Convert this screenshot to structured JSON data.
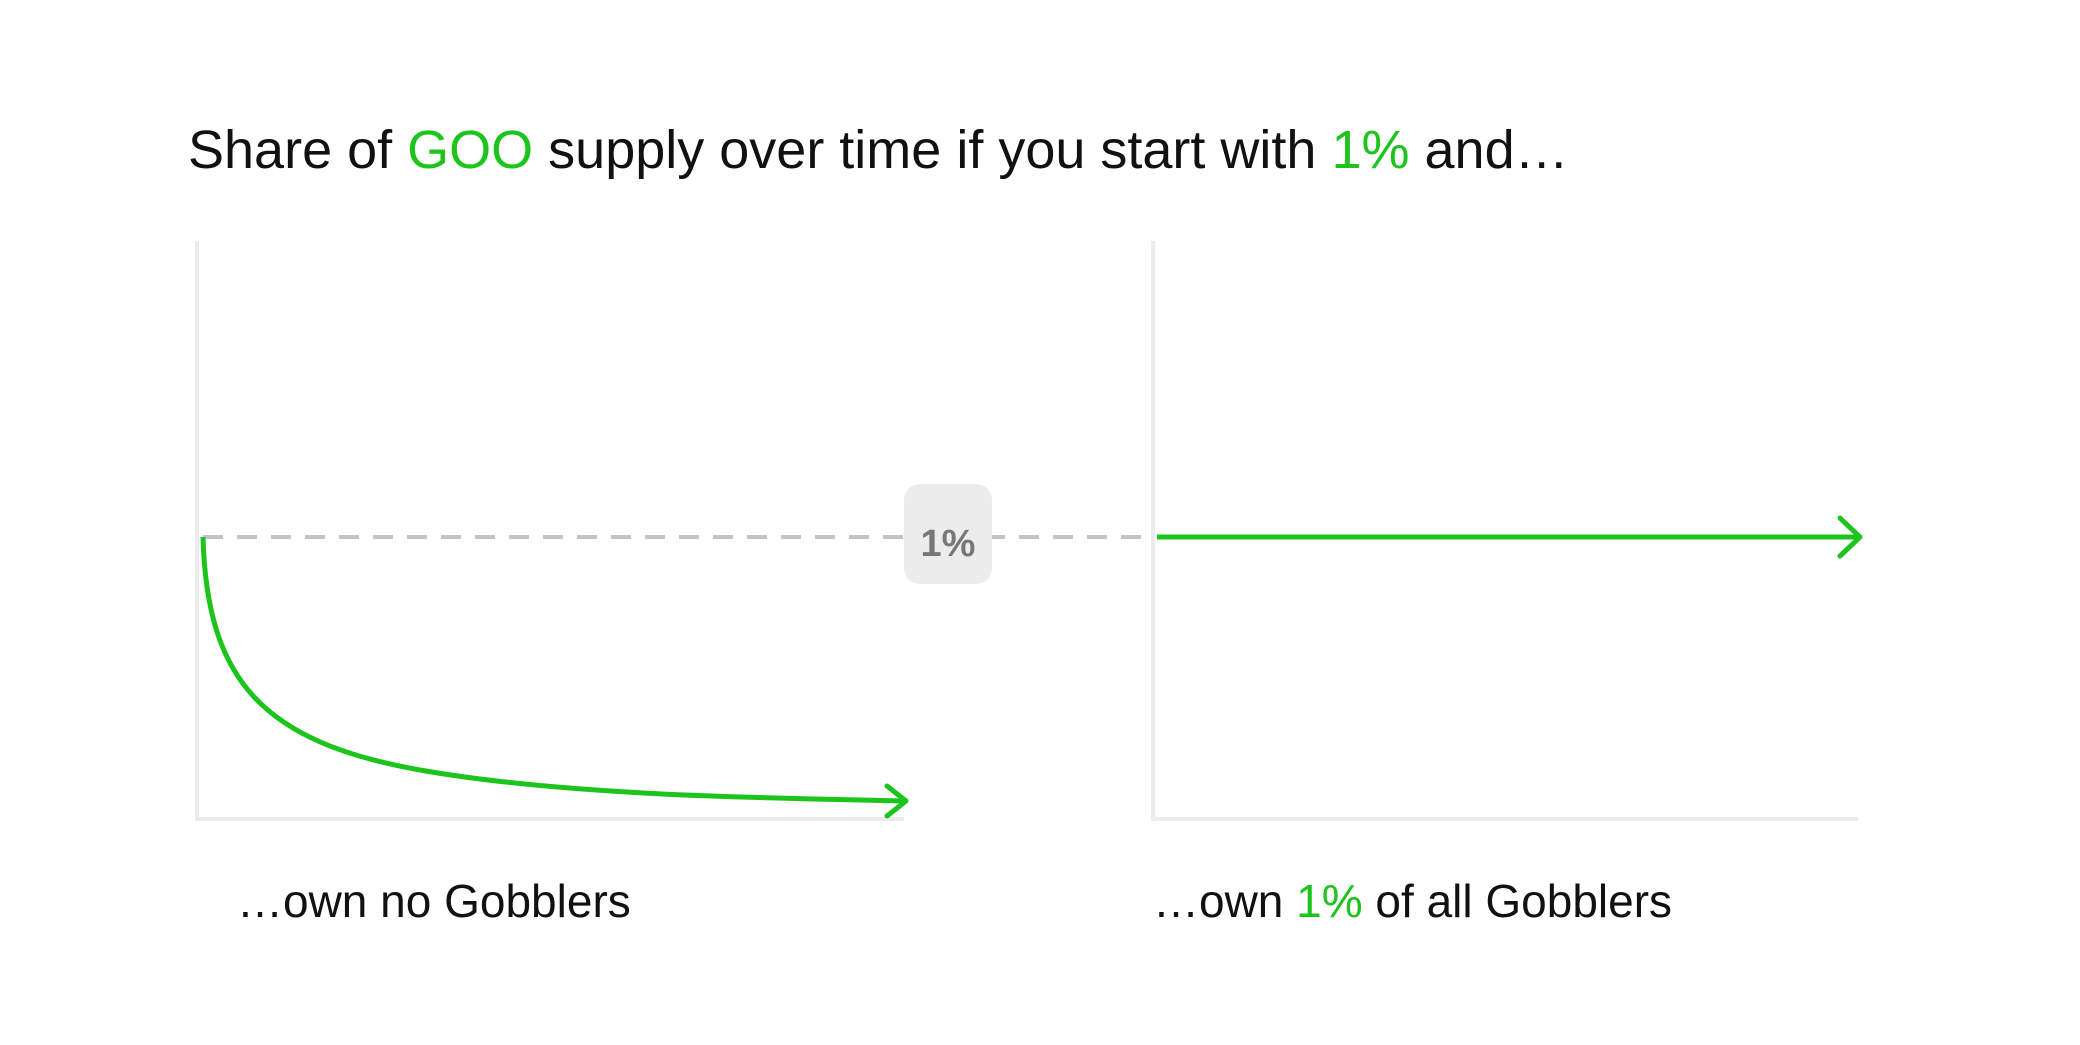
{
  "title": {
    "parts": [
      "Share of ",
      "GOO",
      " supply over time if you start with ",
      "1%",
      " and…"
    ]
  },
  "reference_label": "1%",
  "panels": [
    {
      "caption": {
        "parts": [
          "…own no Gobblers"
        ]
      }
    },
    {
      "caption": {
        "parts": [
          "…own ",
          "1%",
          " of all Gobblers"
        ]
      }
    }
  ]
}
